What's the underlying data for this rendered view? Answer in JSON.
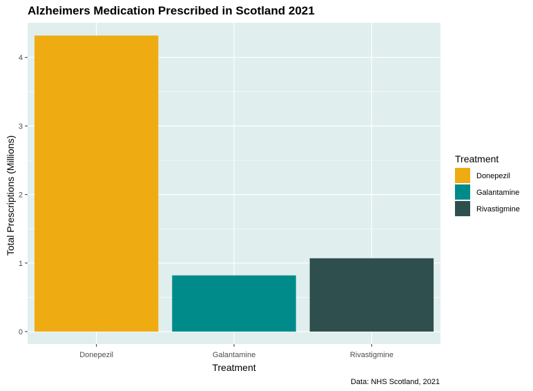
{
  "chart_data": {
    "type": "bar",
    "title": "Alzheimers Medication Prescribed in Scotland 2021",
    "xlabel": "Treatment",
    "ylabel": "Total Prescriptions (Millions)",
    "categories": [
      "Donepezil",
      "Galantamine",
      "Rivastigmine"
    ],
    "values": [
      4.32,
      0.82,
      1.07
    ],
    "colors": [
      "#EEAC12",
      "#008B8B",
      "#2F4F4F"
    ],
    "ylim": [
      0,
      4.5
    ],
    "yticks": [
      0,
      1,
      2,
      3,
      4
    ],
    "grid": true,
    "background": "#E0EEEE",
    "legend": {
      "title": "Treatment",
      "position": "right",
      "items": [
        "Donepezil",
        "Galantamine",
        "Rivastigmine"
      ]
    },
    "caption": "Data: NHS Scotland, 2021"
  }
}
